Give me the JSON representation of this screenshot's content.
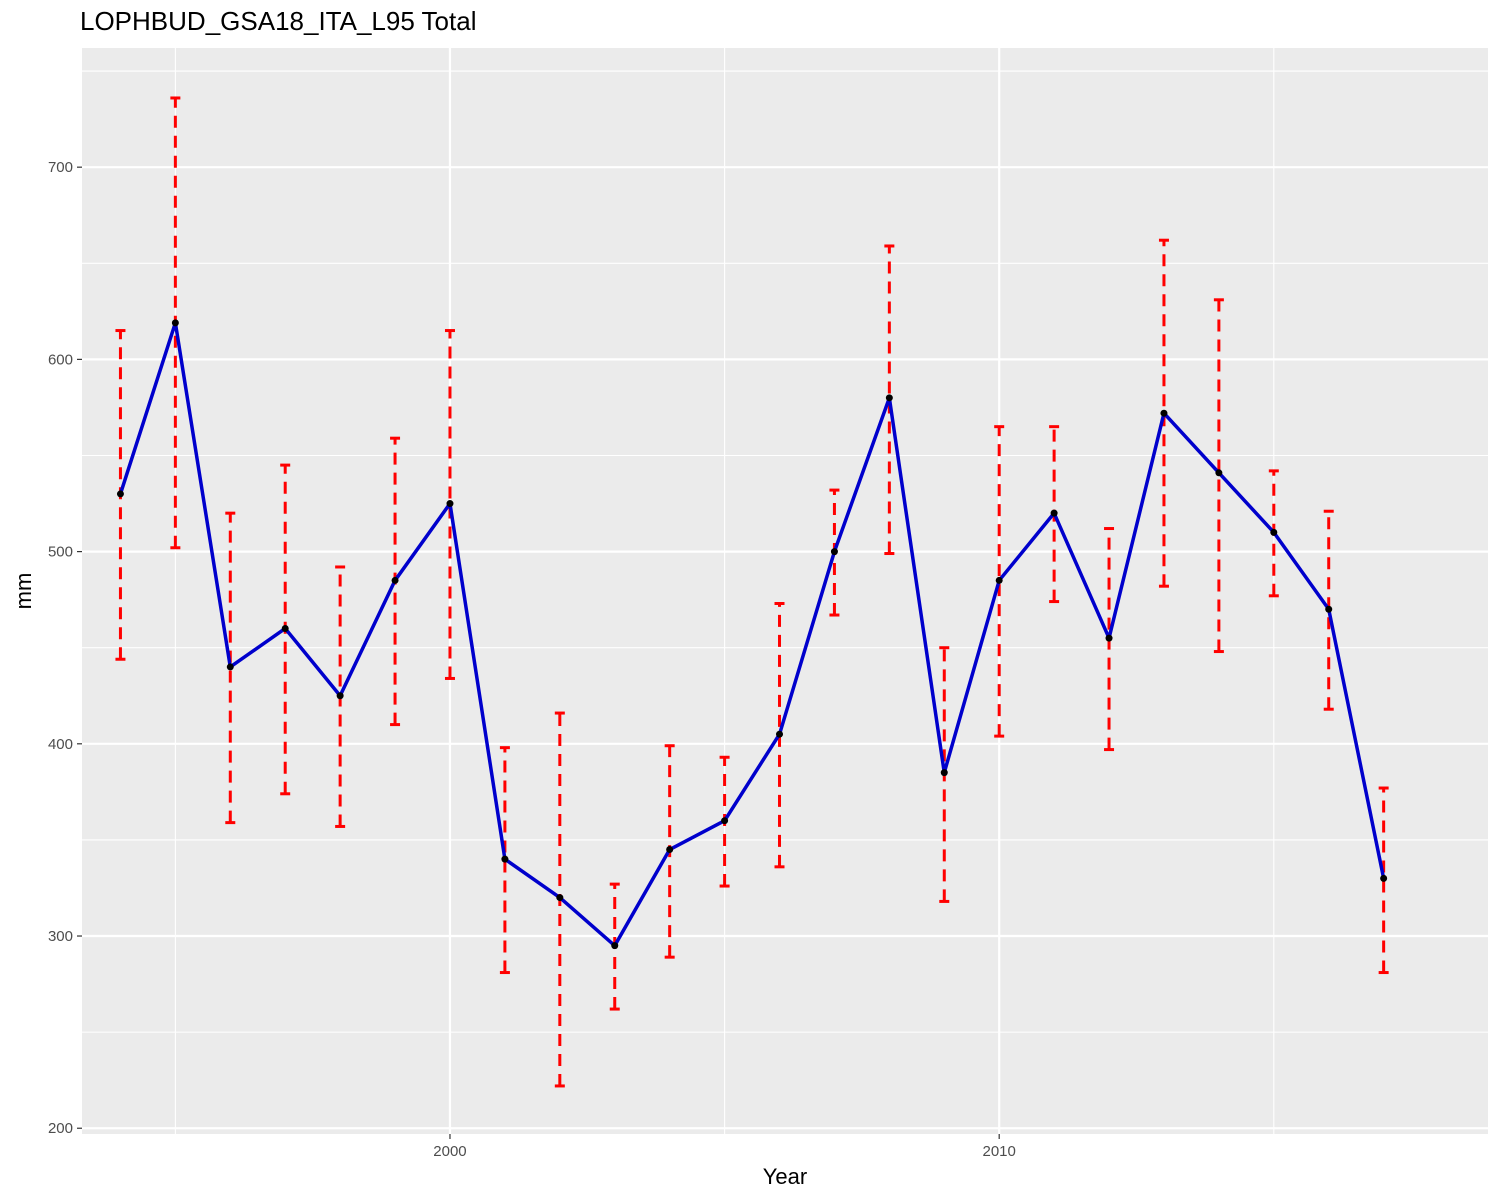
{
  "chart_data": {
    "type": "line",
    "title": "LOPHBUD_GSA18_ITA_L95 Total",
    "xlabel": "Year",
    "ylabel": "mm",
    "xlim": [
      1993.3,
      2018.9
    ],
    "ylim": [
      197,
      762
    ],
    "x_ticks": [
      2000,
      2010
    ],
    "x_minor_ticks": [
      1995,
      2005,
      2015
    ],
    "y_ticks": [
      200,
      300,
      400,
      500,
      600,
      700
    ],
    "y_minor_ticks": [
      250,
      350,
      450,
      550,
      650,
      750
    ],
    "grid": true,
    "legend": "none",
    "colors": {
      "panel_background": "#ebebeb",
      "grid": "#ffffff",
      "line": "#0000cc",
      "error_bars": "#ff0000",
      "points": "#000000"
    },
    "series": [
      {
        "x": [
          1994,
          1995,
          1996,
          1997,
          1998,
          1999,
          2000,
          2001,
          2002,
          2003,
          2004,
          2005,
          2006,
          2007,
          2008,
          2009,
          2010,
          2011,
          2012,
          2013,
          2014,
          2015,
          2016,
          2017
        ],
        "y": [
          530,
          619,
          440,
          460,
          425,
          485,
          525,
          340,
          320,
          295,
          345,
          360,
          405,
          500,
          580,
          385,
          485,
          520,
          455,
          572,
          541,
          510,
          470,
          330
        ],
        "lower": [
          444,
          502,
          359,
          374,
          357,
          410,
          434,
          281,
          222,
          262,
          289,
          326,
          336,
          467,
          499,
          318,
          404,
          474,
          397,
          482,
          448,
          477,
          418,
          281
        ],
        "upper": [
          615,
          736,
          520,
          545,
          492,
          559,
          615,
          398,
          416,
          327,
          399,
          393,
          473,
          532,
          659,
          450,
          565,
          565,
          512,
          662,
          631,
          542,
          521,
          377
        ]
      }
    ]
  }
}
